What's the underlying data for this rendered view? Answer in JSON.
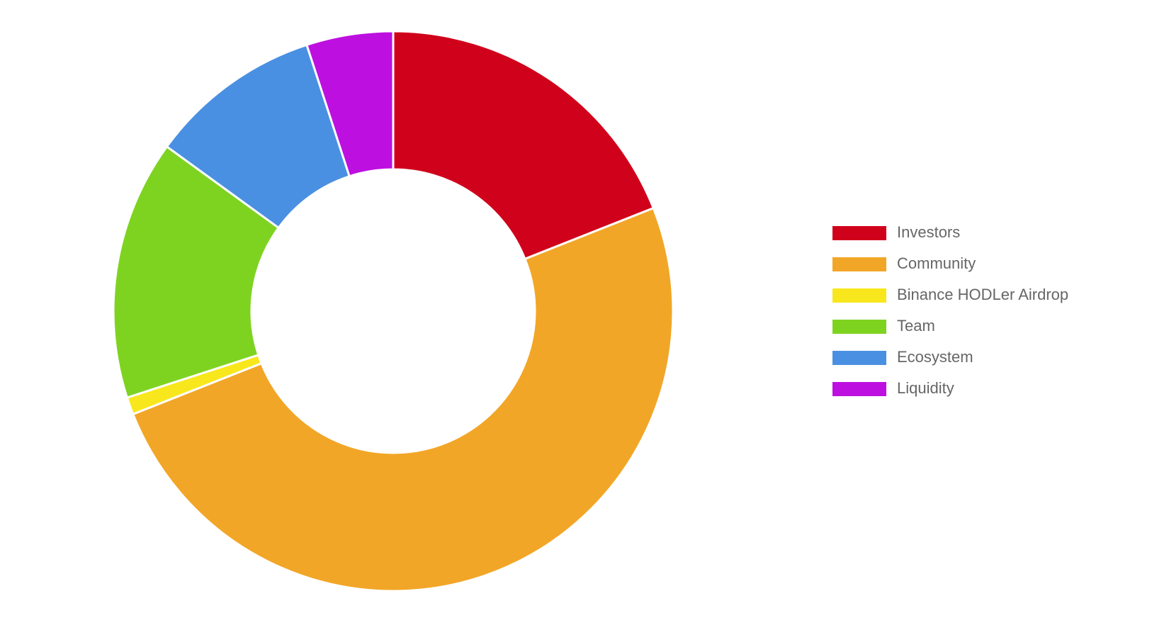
{
  "chart_data": {
    "type": "doughnut",
    "categories": [
      "Investors",
      "Community",
      "Binance HODLer Airdrop",
      "Team",
      "Ecosystem",
      "Liquidity"
    ],
    "values": [
      19,
      50,
      1,
      15,
      10,
      5
    ],
    "colors": [
      "#d0021b",
      "#f2a627",
      "#f8e71c",
      "#7ed321",
      "#4a90e2",
      "#bd10e0"
    ],
    "legend": "right"
  }
}
